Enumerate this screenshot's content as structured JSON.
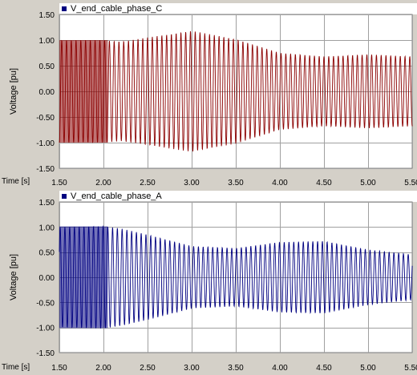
{
  "charts": [
    {
      "legend": "V_end_cable_phase_C",
      "ylabel": "Voltage [pu]",
      "time_label": "Time [s]",
      "color": "#8b0000"
    },
    {
      "legend": "V_end_cable_phase_A",
      "ylabel": "Voltage [pu]",
      "time_label": "Time [s]",
      "color": "#000080"
    }
  ],
  "chart_data": [
    {
      "type": "line",
      "title": "",
      "series": [
        {
          "name": "V_end_cable_phase_C",
          "color": "#8b0000"
        }
      ],
      "xlabel": "Time [s]",
      "ylabel": "Voltage [pu]",
      "xlim": [
        1.5,
        5.5
      ],
      "ylim": [
        -1.5,
        1.5
      ],
      "x_ticks": [
        "1.50",
        "2.00",
        "2.50",
        "3.00",
        "3.50",
        "4.00",
        "4.50",
        "5.00",
        "5.50"
      ],
      "y_ticks": [
        "1.50",
        "1.00",
        "0.50",
        "0.00",
        "-0.50",
        "-1.00",
        "-1.50"
      ],
      "envelope": {
        "x": [
          1.5,
          2.0,
          2.2,
          2.5,
          3.0,
          3.5,
          4.0,
          4.5,
          5.0,
          5.5
        ],
        "amplitude": [
          1.0,
          1.0,
          0.97,
          1.05,
          1.18,
          1.02,
          0.75,
          0.68,
          0.72,
          0.68
        ]
      },
      "grid": true
    },
    {
      "type": "line",
      "title": "",
      "series": [
        {
          "name": "V_end_cable_phase_A",
          "color": "#000080"
        }
      ],
      "xlabel": "Time [s]",
      "ylabel": "Voltage [pu]",
      "xlim": [
        1.5,
        5.5
      ],
      "ylim": [
        -1.5,
        1.5
      ],
      "x_ticks": [
        "1.50",
        "2.00",
        "2.50",
        "3.00",
        "3.50",
        "4.00",
        "4.50",
        "5.00",
        "5.50"
      ],
      "y_ticks": [
        "1.50",
        "1.00",
        "0.50",
        "0.00",
        "-0.50",
        "-1.00",
        "-1.50"
      ],
      "envelope": {
        "x": [
          1.5,
          2.0,
          2.2,
          2.5,
          3.0,
          3.5,
          4.0,
          4.5,
          5.0,
          5.5
        ],
        "amplitude": [
          1.0,
          1.02,
          0.97,
          0.85,
          0.62,
          0.58,
          0.7,
          0.72,
          0.55,
          0.45
        ]
      },
      "grid": true
    }
  ]
}
